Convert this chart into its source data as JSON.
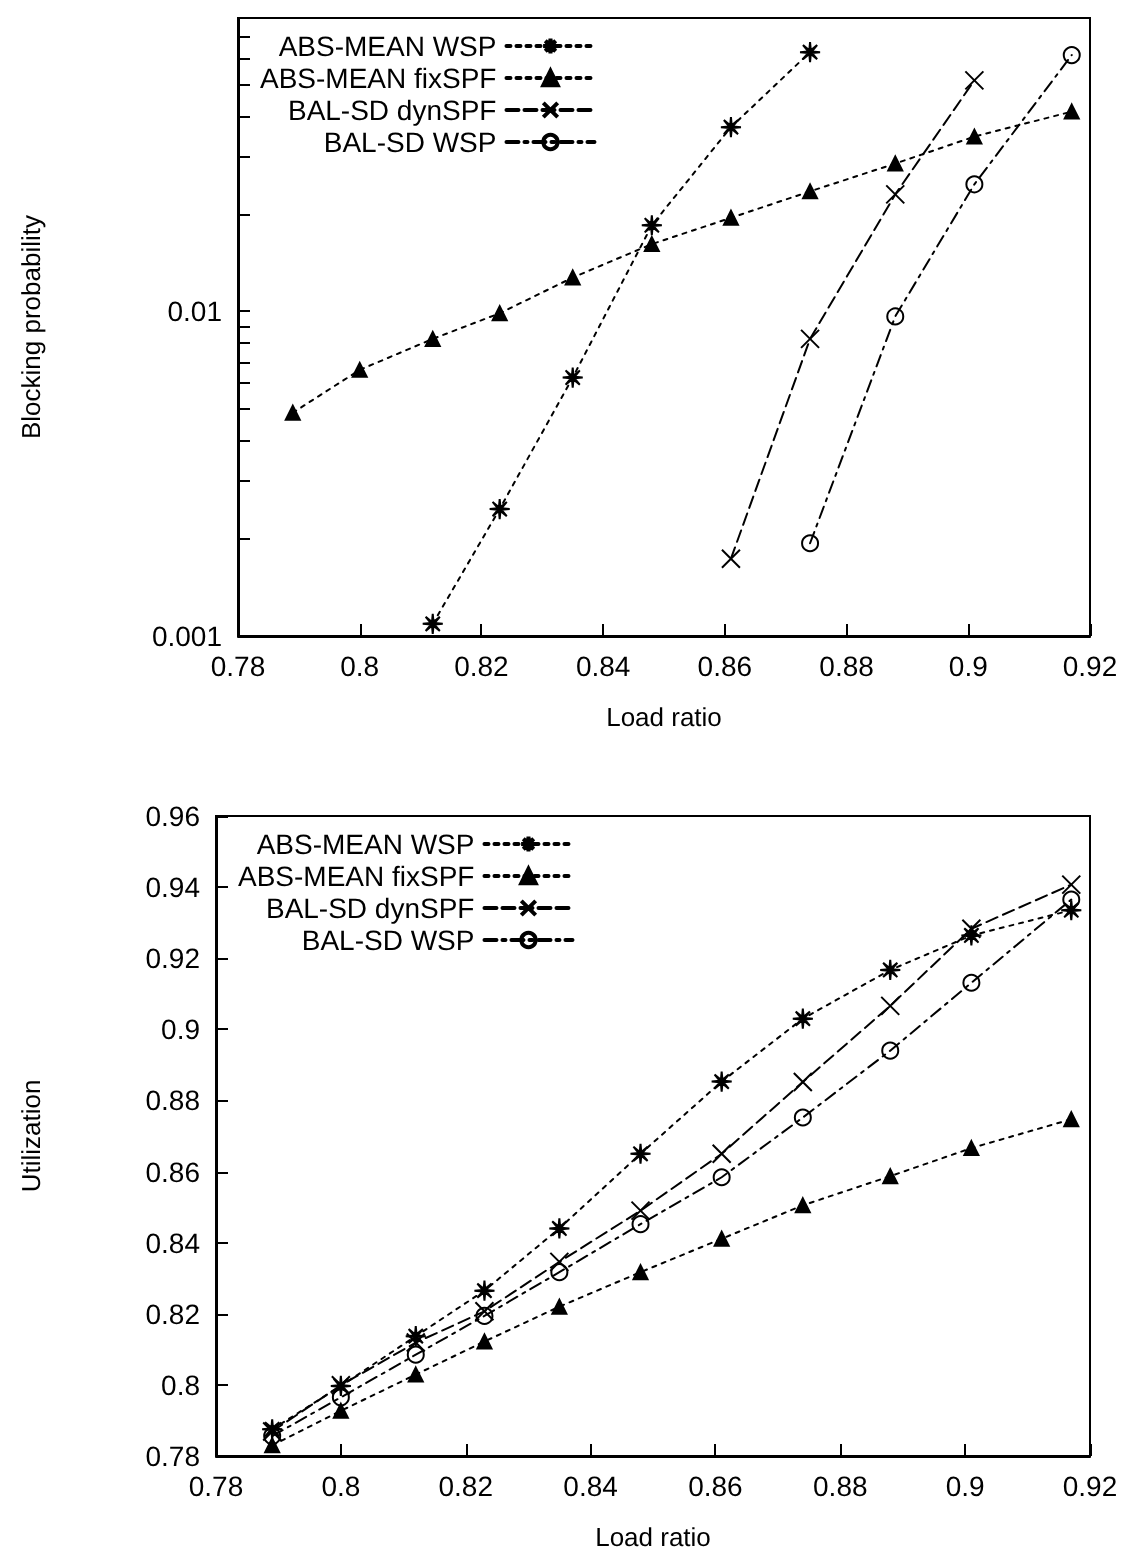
{
  "chart_data": [
    {
      "type": "line",
      "xlabel": "Load ratio",
      "ylabel": "Blocking probability",
      "log": "y",
      "x": [
        0.789,
        0.8,
        0.812,
        0.823,
        0.835,
        0.848,
        0.861,
        0.874,
        0.888,
        0.901,
        0.917
      ],
      "xlim": [
        0.78,
        0.92
      ],
      "xticks": [
        0.78,
        0.8,
        0.82,
        0.84,
        0.86,
        0.88,
        0.9,
        0.92
      ],
      "ylim": [
        0.001,
        0.08
      ],
      "yticks": [
        0.001,
        {
          "value": 0.002,
          "label": null
        },
        {
          "value": 0.003,
          "label": null
        },
        {
          "value": 0.004,
          "label": null
        },
        {
          "value": 0.005,
          "label": null
        },
        {
          "value": 0.006,
          "label": null
        },
        {
          "value": 0.007,
          "label": null
        },
        {
          "value": 0.008,
          "label": null
        },
        {
          "value": 0.009,
          "label": null
        },
        0.01,
        {
          "value": 0.02,
          "label": null
        },
        {
          "value": 0.03,
          "label": null
        },
        {
          "value": 0.04,
          "label": null
        },
        {
          "value": 0.05,
          "label": null
        },
        {
          "value": 0.06,
          "label": null
        },
        {
          "value": 0.07,
          "label": null
        }
      ],
      "grid": false,
      "legend": "top left",
      "series": [
        {
          "name": "ABS-MEAN WSP",
          "color": "#000000",
          "marker": "star",
          "line_style": "dotted",
          "values": [
            null,
            null,
            0.00109,
            0.00246,
            0.00625,
            0.0184,
            0.0369,
            0.0628,
            null,
            null,
            null
          ]
        },
        {
          "name": "ABS-MEAN fixSPF",
          "color": "#000000",
          "marker": "triangle",
          "line_style": "dotted",
          "values": [
            0.00487,
            0.0066,
            0.00822,
            0.00986,
            0.0127,
            0.0161,
            0.0194,
            0.0234,
            0.0285,
            0.0345,
            0.0412
          ]
        },
        {
          "name": "BAL-SD dynSPF",
          "color": "#000000",
          "marker": "cross",
          "line_style": "dashed",
          "values": [
            null,
            null,
            null,
            null,
            null,
            null,
            0.00173,
            0.00822,
            0.0229,
            0.0514,
            null
          ]
        },
        {
          "name": "BAL-SD WSP",
          "color": "#000000",
          "marker": "circle",
          "line_style": "dashdot",
          "values": [
            null,
            null,
            null,
            null,
            null,
            null,
            null,
            0.00193,
            0.00964,
            0.0246,
            0.0615
          ]
        }
      ]
    },
    {
      "type": "line",
      "xlabel": "Load ratio",
      "ylabel": "Utilization",
      "x": [
        0.789,
        0.8,
        0.812,
        0.823,
        0.835,
        0.848,
        0.861,
        0.874,
        0.888,
        0.901,
        0.917
      ],
      "xlim": [
        0.78,
        0.92
      ],
      "xticks": [
        0.78,
        0.8,
        0.82,
        0.84,
        0.86,
        0.88,
        0.9,
        0.92
      ],
      "ylim": [
        0.78,
        0.96
      ],
      "yticks": [
        0.78,
        0.8,
        0.82,
        0.84,
        0.86,
        0.88,
        0.9,
        0.92,
        0.94,
        0.96
      ],
      "grid": false,
      "legend": "top left",
      "series": [
        {
          "name": "ABS-MEAN WSP",
          "color": "#000000",
          "marker": "star",
          "line_style": "dotted",
          "values": [
            0.7875,
            0.7997,
            0.8137,
            0.8265,
            0.844,
            0.865,
            0.8853,
            0.903,
            0.9167,
            0.9264,
            0.9335
          ]
        },
        {
          "name": "ABS-MEAN fixSPF",
          "color": "#000000",
          "marker": "triangle",
          "line_style": "dotted",
          "values": [
            0.783,
            0.7927,
            0.8029,
            0.8122,
            0.822,
            0.8317,
            0.8411,
            0.8505,
            0.8587,
            0.8666,
            0.8747
          ]
        },
        {
          "name": "BAL-SD dynSPF",
          "color": "#000000",
          "marker": "cross",
          "line_style": "dashed",
          "values": [
            0.7869,
            0.7999,
            0.8119,
            0.8207,
            0.8346,
            0.849,
            0.865,
            0.8852,
            0.9066,
            0.9283,
            0.9407
          ]
        },
        {
          "name": "BAL-SD WSP",
          "color": "#000000",
          "marker": "circle",
          "line_style": "dashdot",
          "values": [
            0.7856,
            0.7965,
            0.8085,
            0.8194,
            0.8317,
            0.8452,
            0.8584,
            0.8752,
            0.894,
            0.9131,
            0.9365
          ]
        }
      ]
    }
  ]
}
